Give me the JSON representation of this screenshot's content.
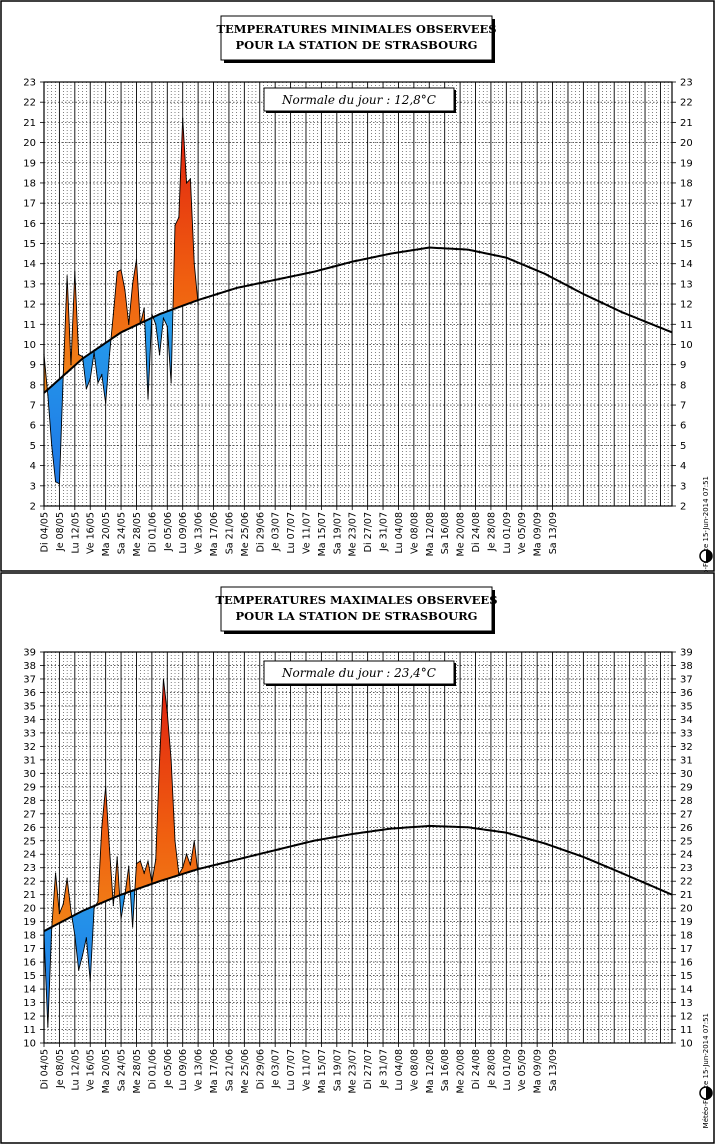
{
  "chart_data": [
    {
      "type": "area",
      "title": "TEMPERATURES MINIMALES OBSERVEES",
      "subtitle": "POUR LA STATION DE STRASBOURG",
      "normal_label": "Normale du jour : 12,8°C",
      "credit": "Météo-France 15-Jun-2014 07:51",
      "ylim": [
        2,
        23
      ],
      "y_ticks": [
        2,
        3,
        4,
        5,
        6,
        7,
        8,
        9,
        10,
        11,
        12,
        13,
        14,
        15,
        16,
        17,
        18,
        19,
        20,
        21,
        22,
        23
      ],
      "x_range_days": [
        0,
        163
      ],
      "x_ticks": [
        "Di 04/05",
        "Je 08/05",
        "Lu 12/05",
        "Ve 16/05",
        "Ma 20/05",
        "Sa 24/05",
        "Me 28/05",
        "Di 01/06",
        "Je 05/06",
        "Lu 09/06",
        "Ve 13/06",
        "Ma 17/06",
        "Sa 21/06",
        "Me 25/06",
        "Di 29/06",
        "Je 03/07",
        "Lu 07/07",
        "Ve 11/07",
        "Ma 15/07",
        "Sa 19/07",
        "Me 23/07",
        "Di 27/07",
        "Je 31/07",
        "Lu 04/08",
        "Ve 08/08",
        "Ma 12/08",
        "Sa 16/08",
        "Me 20/08",
        "Di 24/08",
        "Je 28/08",
        "Lu 01/09",
        "Ve 05/09",
        "Ma 09/09",
        "Sa 13/09"
      ],
      "colors": {
        "below": "#1e78e6",
        "above": "#f0a820",
        "hot": "#e02010",
        "normal": "#000000"
      },
      "series": [
        {
          "name": "normale",
          "x": [
            0,
            10,
            20,
            30,
            40,
            50,
            60,
            70,
            80,
            90,
            100,
            110,
            120,
            130,
            140,
            150,
            163
          ],
          "y": [
            7.6,
            9.3,
            10.6,
            11.5,
            12.2,
            12.8,
            13.2,
            13.6,
            14.1,
            14.5,
            14.8,
            14.7,
            14.3,
            13.5,
            12.5,
            11.6,
            10.6
          ]
        },
        {
          "name": "observed",
          "x": [
            0,
            1,
            2,
            3,
            4,
            5,
            6,
            7,
            8,
            9,
            10,
            11,
            12,
            13,
            14,
            15,
            16,
            17,
            18,
            19,
            20,
            21,
            22,
            23,
            24,
            25,
            26,
            27,
            28,
            29,
            30,
            31,
            32,
            33,
            34,
            35,
            36,
            37,
            38,
            39,
            40
          ],
          "y": [
            9.5,
            7.5,
            5.0,
            3.2,
            3.1,
            8.5,
            13.4,
            9.0,
            13.6,
            9.5,
            9.4,
            7.8,
            8.3,
            9.6,
            8.1,
            8.5,
            7.1,
            9.5,
            11.5,
            13.6,
            13.7,
            12.7,
            11.0,
            13.0,
            14.2,
            11.0,
            11.8,
            7.3,
            11.5,
            11.0,
            9.5,
            11.3,
            10.9,
            8.1,
            15.9,
            16.3,
            21.2,
            18.0,
            18.2,
            14.0,
            12.0
          ]
        }
      ]
    },
    {
      "type": "area",
      "title": "TEMPERATURES MAXIMALES OBSERVEES",
      "subtitle": "POUR LA STATION DE STRASBOURG",
      "normal_label": "Normale du jour : 23,4°C",
      "credit": "Météo-France 15-Jun-2014 07:51",
      "ylim": [
        10,
        39
      ],
      "y_ticks": [
        10,
        11,
        12,
        13,
        14,
        15,
        16,
        17,
        18,
        19,
        20,
        21,
        22,
        23,
        24,
        25,
        26,
        27,
        28,
        29,
        30,
        31,
        32,
        33,
        34,
        35,
        36,
        37,
        38,
        39
      ],
      "x_range_days": [
        0,
        163
      ],
      "x_ticks": [
        "Di 04/05",
        "Je 08/05",
        "Lu 12/05",
        "Ve 16/05",
        "Ma 20/05",
        "Sa 24/05",
        "Me 28/05",
        "Di 01/06",
        "Je 05/06",
        "Lu 09/06",
        "Ve 13/06",
        "Ma 17/06",
        "Sa 21/06",
        "Me 25/06",
        "Di 29/06",
        "Je 03/07",
        "Lu 07/07",
        "Ve 11/07",
        "Ma 15/07",
        "Sa 19/07",
        "Me 23/07",
        "Di 27/07",
        "Je 31/07",
        "Lu 04/08",
        "Ve 08/08",
        "Ma 12/08",
        "Sa 16/08",
        "Me 20/08",
        "Di 24/08",
        "Je 28/08",
        "Lu 01/09",
        "Ve 05/09",
        "Ma 09/09",
        "Sa 13/09"
      ],
      "colors": {
        "below": "#1e78e6",
        "above": "#f0a820",
        "hot": "#e02010",
        "normal": "#000000"
      },
      "series": [
        {
          "name": "normale",
          "x": [
            0,
            10,
            20,
            30,
            40,
            50,
            60,
            70,
            80,
            90,
            100,
            110,
            120,
            130,
            140,
            150,
            163
          ],
          "y": [
            18.3,
            19.8,
            21.0,
            22.0,
            22.9,
            23.6,
            24.3,
            25.0,
            25.5,
            25.9,
            26.1,
            26.0,
            25.6,
            24.8,
            23.8,
            22.6,
            21.0
          ]
        },
        {
          "name": "observed",
          "x": [
            0,
            1,
            2,
            3,
            4,
            5,
            6,
            7,
            8,
            9,
            10,
            11,
            12,
            13,
            14,
            15,
            16,
            17,
            18,
            19,
            20,
            21,
            22,
            23,
            24,
            25,
            26,
            27,
            28,
            29,
            30,
            31,
            32,
            33,
            34,
            35,
            36,
            37,
            38,
            39,
            40
          ],
          "y": [
            18.0,
            11.2,
            18.5,
            22.6,
            19.6,
            20.3,
            22.2,
            19.8,
            18.0,
            15.4,
            16.5,
            17.8,
            14.6,
            20.0,
            20.5,
            26.0,
            29.0,
            24.4,
            20.2,
            23.8,
            19.2,
            21.0,
            23.1,
            18.6,
            23.3,
            23.5,
            22.6,
            23.5,
            21.9,
            23.6,
            31.0,
            37.0,
            34.5,
            31.0,
            25.0,
            22.5,
            23.0,
            24.0,
            23.2,
            25.0,
            22.5
          ]
        }
      ]
    }
  ]
}
